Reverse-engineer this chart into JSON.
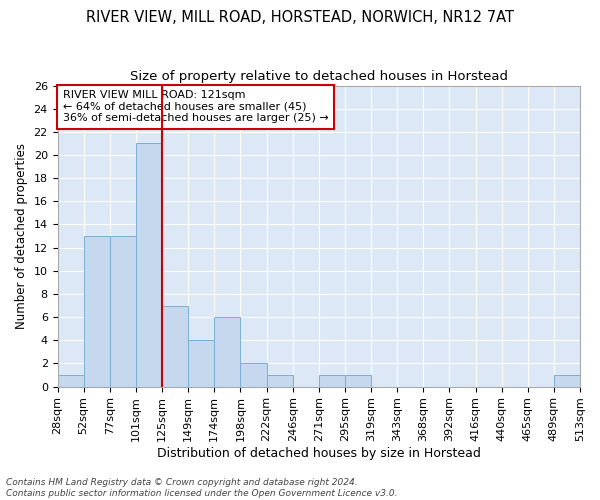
{
  "title1": "RIVER VIEW, MILL ROAD, HORSTEAD, NORWICH, NR12 7AT",
  "title2": "Size of property relative to detached houses in Horstead",
  "xlabel": "Distribution of detached houses by size in Horstead",
  "ylabel": "Number of detached properties",
  "bin_labels": [
    "28sqm",
    "52sqm",
    "77sqm",
    "101sqm",
    "125sqm",
    "149sqm",
    "174sqm",
    "198sqm",
    "222sqm",
    "246sqm",
    "271sqm",
    "295sqm",
    "319sqm",
    "343sqm",
    "368sqm",
    "392sqm",
    "416sqm",
    "440sqm",
    "465sqm",
    "489sqm",
    "513sqm"
  ],
  "bar_heights": [
    1,
    13,
    13,
    21,
    7,
    4,
    6,
    2,
    1,
    0,
    1,
    1,
    0,
    0,
    0,
    0,
    0,
    0,
    0,
    1
  ],
  "bar_color": "#c5d8ee",
  "bar_edge_color": "#7bafd4",
  "vline_color": "#cc0000",
  "vline_x_index": 4,
  "annotation_text": "RIVER VIEW MILL ROAD: 121sqm\n← 64% of detached houses are smaller (45)\n36% of semi-detached houses are larger (25) →",
  "annotation_box_color": "#cc0000",
  "ylim": [
    0,
    26
  ],
  "yticks": [
    0,
    2,
    4,
    6,
    8,
    10,
    12,
    14,
    16,
    18,
    20,
    22,
    24,
    26
  ],
  "footer": "Contains HM Land Registry data © Crown copyright and database right 2024.\nContains public sector information licensed under the Open Government Licence v3.0.",
  "bg_color": "#dce8f5",
  "grid_color": "#ffffff",
  "fig_bg_color": "#ffffff",
  "title1_fontsize": 10.5,
  "title2_fontsize": 9.5,
  "xlabel_fontsize": 9,
  "ylabel_fontsize": 8.5,
  "tick_fontsize": 8,
  "annot_fontsize": 8,
  "footer_fontsize": 6.5
}
